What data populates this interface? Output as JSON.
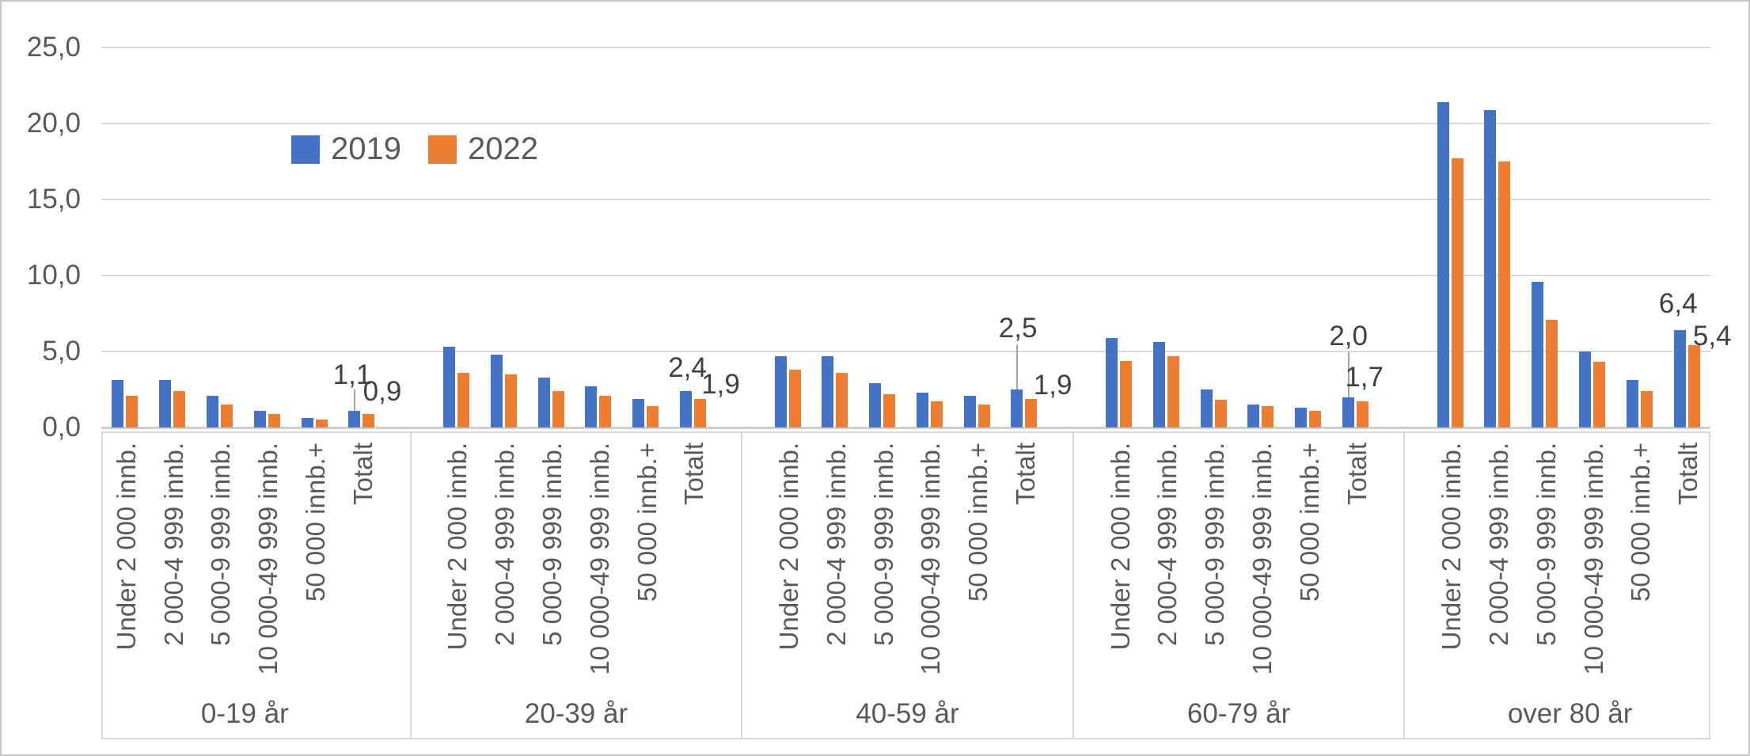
{
  "chart_data": {
    "type": "bar",
    "title": "",
    "legend": {
      "series1": "2019",
      "series2": "2022",
      "color1": "#4472C4",
      "color2": "#ED7D31"
    },
    "legend_position": "top-left-inside",
    "grid": true,
    "y_axis": {
      "min": 0,
      "max": 25,
      "tick_labels": [
        "25,0",
        "20,0",
        "15,0",
        "10,0",
        "5,0",
        "0,0"
      ]
    },
    "subcategories": [
      "Under 2 000 innb.",
      "2 000-4 999 innb.",
      "5 000-9 999 innb.",
      "10 000-49 999 innb.",
      "50 000 innb.+",
      "Totalt"
    ],
    "series_names": [
      "2019",
      "2022"
    ],
    "groups": [
      {
        "label": "0-19 år",
        "values_2019": [
          3.1,
          3.1,
          2.1,
          1.1,
          0.6,
          1.1
        ],
        "values_2022": [
          2.1,
          2.4,
          1.5,
          0.9,
          0.5,
          0.9
        ],
        "totalt_label_2019": "1,1",
        "totalt_label_2022": "0,9"
      },
      {
        "label": "20-39 år",
        "values_2019": [
          5.3,
          4.8,
          3.3,
          2.7,
          1.9,
          2.4
        ],
        "values_2022": [
          3.6,
          3.5,
          2.4,
          2.1,
          1.4,
          1.9
        ],
        "totalt_label_2019": "2,4",
        "totalt_label_2022": "1,9"
      },
      {
        "label": "40-59 år",
        "values_2019": [
          4.7,
          4.7,
          2.9,
          2.3,
          2.1,
          2.5
        ],
        "values_2022": [
          3.8,
          3.6,
          2.2,
          1.7,
          1.5,
          1.9
        ],
        "totalt_label_2019": "2,5",
        "totalt_label_2022": "1,9"
      },
      {
        "label": "60-79 år",
        "values_2019": [
          5.9,
          5.6,
          2.5,
          1.5,
          1.3,
          2.0
        ],
        "values_2022": [
          4.4,
          4.7,
          1.8,
          1.4,
          1.1,
          1.7
        ],
        "totalt_label_2019": "2,0",
        "totalt_label_2022": "1,7"
      },
      {
        "label": "over 80 år",
        "values_2019": [
          21.4,
          20.9,
          9.6,
          5.0,
          3.1,
          6.4
        ],
        "values_2022": [
          17.7,
          17.5,
          7.1,
          4.3,
          2.4,
          5.4
        ],
        "totalt_label_2019": "6,4",
        "totalt_label_2022": "5,4"
      }
    ]
  }
}
